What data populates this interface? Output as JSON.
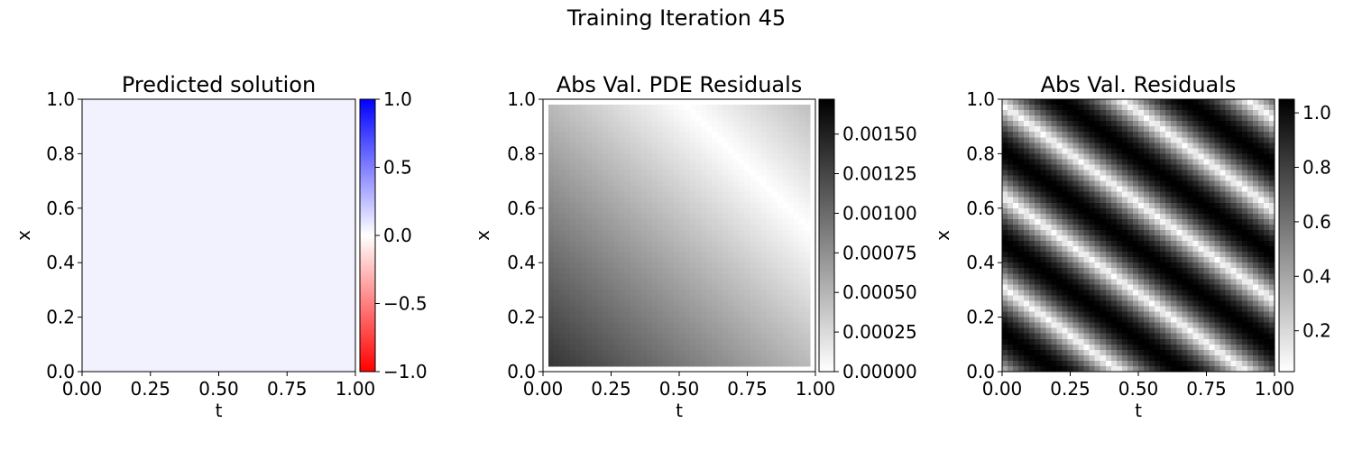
{
  "figure": {
    "title": "Training Iteration 45"
  },
  "chart_data": [
    {
      "type": "heatmap",
      "title": "Predicted solution",
      "xlabel": "t",
      "ylabel": "x",
      "xlim": [
        0,
        1
      ],
      "ylim": [
        0,
        1
      ],
      "xticks": [
        "0.00",
        "0.25",
        "0.50",
        "0.75",
        "1.00"
      ],
      "yticks": [
        "0.0",
        "0.2",
        "0.4",
        "0.6",
        "0.8",
        "1.0"
      ],
      "field": "near-uniform small positive value, approximately 0.05 everywhere",
      "value_estimate": 0.05,
      "colormap": "bwr_r",
      "colorbar": {
        "range": [
          -1.0,
          1.0
        ],
        "ticks": [
          "1.0",
          "0.5",
          "0.0",
          "−0.5",
          "−1.0"
        ],
        "tick_values": [
          1.0,
          0.5,
          0.0,
          -0.5,
          -1.0
        ]
      }
    },
    {
      "type": "heatmap",
      "title": "Abs Val. PDE Residuals",
      "xlabel": "t",
      "ylabel": "x",
      "xlim": [
        0,
        1
      ],
      "ylim": [
        0,
        1
      ],
      "xticks": [
        "0.00",
        "0.25",
        "0.50",
        "0.75",
        "1.00"
      ],
      "yticks": [
        "0.0",
        "0.2",
        "0.4",
        "0.6",
        "0.8",
        "1.0"
      ],
      "field": "|linear function of (t + x)|, zero along t + x ≈ 1.5, maximum near t = 0, x = 0",
      "colormap": "Greys",
      "colorbar": {
        "range": [
          0.0,
          0.00172
        ],
        "ticks": [
          "0.00150",
          "0.00125",
          "0.00100",
          "0.00075",
          "0.00050",
          "0.00025",
          "0.00000"
        ],
        "tick_values": [
          0.0015,
          0.00125,
          0.001,
          0.00075,
          0.0005,
          0.00025,
          0.0
        ]
      }
    },
    {
      "type": "heatmap",
      "title": "Abs Val. Residuals",
      "xlabel": "t",
      "ylabel": "x",
      "xlim": [
        0,
        1
      ],
      "ylim": [
        0,
        1
      ],
      "xticks": [
        "0.00",
        "0.25",
        "0.50",
        "0.75",
        "1.00"
      ],
      "yticks": [
        "0.0",
        "0.2",
        "0.4",
        "0.6",
        "0.8",
        "1.0"
      ],
      "field": "|sin(2π(x − βt))|-like diagonal bands, about 3 periods across the domain",
      "colormap": "Greys",
      "colorbar": {
        "range": [
          0.05,
          1.05
        ],
        "ticks": [
          "1.0",
          "0.8",
          "0.6",
          "0.4",
          "0.2"
        ],
        "tick_values": [
          1.0,
          0.8,
          0.6,
          0.4,
          0.2
        ]
      }
    }
  ]
}
